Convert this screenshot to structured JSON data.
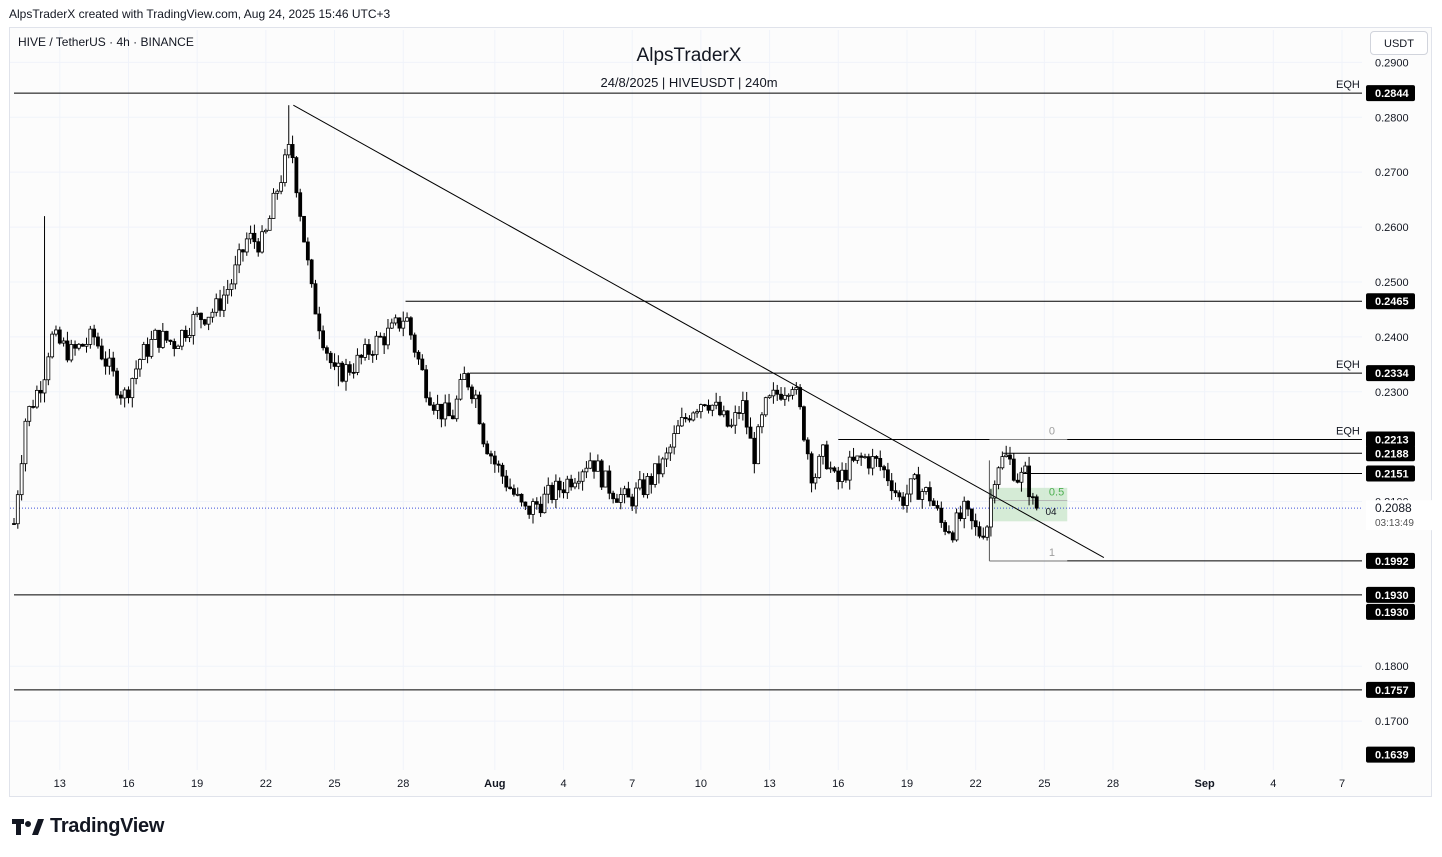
{
  "header": {
    "created_by": "AlpsTraderX created with TradingView.com, Aug 24, 2025 15:46 UTC+3"
  },
  "symbol_info": "HIVE / TetherUS · 4h · BINANCE",
  "currency_button": "USDT",
  "branding": {
    "logo_text": "TradingView"
  },
  "chart_data": {
    "type": "candlestick",
    "title": "AlpsTraderX",
    "subtitle": "24/8/2025 | HIVEUSDT | 240m",
    "y_axis": {
      "ylim": [
        0.1611,
        0.2908
      ],
      "tick_labels": [
        "0.2900",
        "0.2800",
        "0.2700",
        "0.2600",
        "0.2500",
        "0.2400",
        "0.2300",
        "0.2100",
        "0.1800",
        "0.1700"
      ],
      "tick_values": [
        0.29,
        0.28,
        0.27,
        0.26,
        0.25,
        0.24,
        0.23,
        0.21,
        0.18,
        0.17
      ]
    },
    "x_axis": {
      "start_day": 11.0,
      "end_day": 69.0,
      "ticks": [
        {
          "label": "13",
          "day": 13
        },
        {
          "label": "16",
          "day": 16
        },
        {
          "label": "19",
          "day": 19
        },
        {
          "label": "22",
          "day": 22
        },
        {
          "label": "25",
          "day": 25
        },
        {
          "label": "28",
          "day": 28
        },
        {
          "label": "Aug",
          "day": 32
        },
        {
          "label": "4",
          "day": 35
        },
        {
          "label": "7",
          "day": 38
        },
        {
          "label": "10",
          "day": 41
        },
        {
          "label": "13",
          "day": 44
        },
        {
          "label": "16",
          "day": 47
        },
        {
          "label": "19",
          "day": 50
        },
        {
          "label": "22",
          "day": 53
        },
        {
          "label": "25",
          "day": 56
        },
        {
          "label": "28",
          "day": 59
        },
        {
          "label": "Sep",
          "day": 63
        },
        {
          "label": "4",
          "day": 66
        },
        {
          "label": "7",
          "day": 69
        }
      ]
    },
    "price_path": [
      {
        "day": 11.0,
        "price": 0.206
      },
      {
        "day": 11.5,
        "price": 0.225
      },
      {
        "day": 12.3,
        "price": 0.233
      },
      {
        "day": 12.6,
        "price": 0.24
      },
      {
        "day": 13.5,
        "price": 0.237
      },
      {
        "day": 14.5,
        "price": 0.24
      },
      {
        "day": 15.3,
        "price": 0.233
      },
      {
        "day": 15.8,
        "price": 0.229
      },
      {
        "day": 16.5,
        "price": 0.236
      },
      {
        "day": 17.2,
        "price": 0.24
      },
      {
        "day": 18.0,
        "price": 0.239
      },
      {
        "day": 18.8,
        "price": 0.243
      },
      {
        "day": 19.8,
        "price": 0.245
      },
      {
        "day": 20.5,
        "price": 0.25
      },
      {
        "day": 21.2,
        "price": 0.258
      },
      {
        "day": 21.9,
        "price": 0.257
      },
      {
        "day": 22.5,
        "price": 0.267
      },
      {
        "day": 23.1,
        "price": 0.275
      },
      {
        "day": 23.6,
        "price": 0.26
      },
      {
        "day": 24.0,
        "price": 0.248
      },
      {
        "day": 24.5,
        "price": 0.24
      },
      {
        "day": 25.0,
        "price": 0.233
      },
      {
        "day": 25.5,
        "price": 0.234
      },
      {
        "day": 26.2,
        "price": 0.236
      },
      {
        "day": 26.8,
        "price": 0.239
      },
      {
        "day": 27.5,
        "price": 0.241
      },
      {
        "day": 28.1,
        "price": 0.244
      },
      {
        "day": 28.5,
        "price": 0.238
      },
      {
        "day": 29.0,
        "price": 0.231
      },
      {
        "day": 29.5,
        "price": 0.227
      },
      {
        "day": 30.1,
        "price": 0.225
      },
      {
        "day": 30.7,
        "price": 0.233
      },
      {
        "day": 31.2,
        "price": 0.229
      },
      {
        "day": 31.5,
        "price": 0.222
      },
      {
        "day": 32.0,
        "price": 0.217
      },
      {
        "day": 32.6,
        "price": 0.213
      },
      {
        "day": 33.3,
        "price": 0.208
      },
      {
        "day": 34.0,
        "price": 0.21
      },
      {
        "day": 35.0,
        "price": 0.213
      },
      {
        "day": 36.2,
        "price": 0.218
      },
      {
        "day": 36.9,
        "price": 0.213
      },
      {
        "day": 37.8,
        "price": 0.21
      },
      {
        "day": 38.6,
        "price": 0.213
      },
      {
        "day": 39.4,
        "price": 0.217
      },
      {
        "day": 40.0,
        "price": 0.223
      },
      {
        "day": 40.6,
        "price": 0.227
      },
      {
        "day": 41.2,
        "price": 0.229
      },
      {
        "day": 41.8,
        "price": 0.226
      },
      {
        "day": 42.3,
        "price": 0.223
      },
      {
        "day": 42.8,
        "price": 0.228
      },
      {
        "day": 43.3,
        "price": 0.218
      },
      {
        "day": 43.8,
        "price": 0.227
      },
      {
        "day": 44.4,
        "price": 0.23
      },
      {
        "day": 45.0,
        "price": 0.232
      },
      {
        "day": 45.4,
        "price": 0.225
      },
      {
        "day": 45.9,
        "price": 0.214
      },
      {
        "day": 46.4,
        "price": 0.219
      },
      {
        "day": 46.9,
        "price": 0.213
      },
      {
        "day": 47.4,
        "price": 0.216
      },
      {
        "day": 48.1,
        "price": 0.218
      },
      {
        "day": 48.7,
        "price": 0.217
      },
      {
        "day": 49.3,
        "price": 0.214
      },
      {
        "day": 49.7,
        "price": 0.21
      },
      {
        "day": 50.3,
        "price": 0.213
      },
      {
        "day": 51.0,
        "price": 0.211
      },
      {
        "day": 51.5,
        "price": 0.206
      },
      {
        "day": 52.0,
        "price": 0.205
      },
      {
        "day": 52.5,
        "price": 0.208
      },
      {
        "day": 53.1,
        "price": 0.204
      },
      {
        "day": 53.5,
        "price": 0.206
      },
      {
        "day": 53.9,
        "price": 0.217
      },
      {
        "day": 54.4,
        "price": 0.218
      },
      {
        "day": 54.9,
        "price": 0.214
      },
      {
        "day": 55.2,
        "price": 0.215
      },
      {
        "day": 55.5,
        "price": 0.2095
      },
      {
        "day": 55.7,
        "price": 0.2088
      }
    ],
    "wick_spikes": [
      {
        "day": 12.4,
        "high": 0.262
      },
      {
        "day": 23.0,
        "high": 0.2822
      },
      {
        "day": 33.6,
        "low": 0.206
      },
      {
        "day": 25.2,
        "low": 0.231
      }
    ],
    "trendline": {
      "from": {
        "day": 23.2,
        "price": 0.2822
      },
      "to": {
        "day": 58.6,
        "price": 0.1998
      }
    },
    "horizontal_levels": [
      {
        "price": 0.2844,
        "label": "0.2844",
        "tag": "EQH",
        "from_day": 11.0
      },
      {
        "price": 0.2465,
        "label": "0.2465",
        "tag": "",
        "from_day": 28.1
      },
      {
        "price": 0.2334,
        "label": "0.2334",
        "tag": "EQH",
        "from_day": 30.9
      },
      {
        "price": 0.2213,
        "label": "0.2213",
        "tag": "EQH",
        "from_day": 47.0
      },
      {
        "price": 0.2188,
        "label": "0.2188",
        "tag": "",
        "from_day": 54.2
      },
      {
        "price": 0.2151,
        "label": "0.2151",
        "tag": "",
        "from_day": 55.0
      },
      {
        "price": 0.1992,
        "label": "0.1992",
        "tag": "",
        "from_day": 53.6
      },
      {
        "price": 0.193,
        "label": "0.1930",
        "tag": "",
        "from_day": 11.0
      },
      {
        "price": 0.1757,
        "label": "0.1757",
        "tag": "",
        "from_day": 11.0
      }
    ],
    "extra_price_labels": [
      {
        "price": 0.193,
        "label": "0.1930"
      },
      {
        "price": 0.1639,
        "label": "0.1639"
      }
    ],
    "current_price": {
      "price": 0.2088,
      "label": "0.2088",
      "countdown": "03:13:49",
      "color": "#3d4fd8"
    },
    "fib": {
      "levels": [
        {
          "ratio": "0",
          "price": 0.2213
        },
        {
          "ratio": "0.5",
          "price": 0.2102
        },
        {
          "ratio": "1",
          "price": 0.1992
        }
      ],
      "zone": {
        "from_day": 53.6,
        "to_day": 57.0,
        "top": 0.2125,
        "bottom": 0.2064,
        "color": "#c8e6c9"
      },
      "annotation": "04"
    },
    "colors": {
      "bull": "#ffffff",
      "bear": "#000000",
      "wick": "#000000",
      "line": "#000000",
      "fib_label": "#9e9e9e",
      "fib_half": "#4caf50",
      "grid": "#f0f3fa"
    }
  }
}
